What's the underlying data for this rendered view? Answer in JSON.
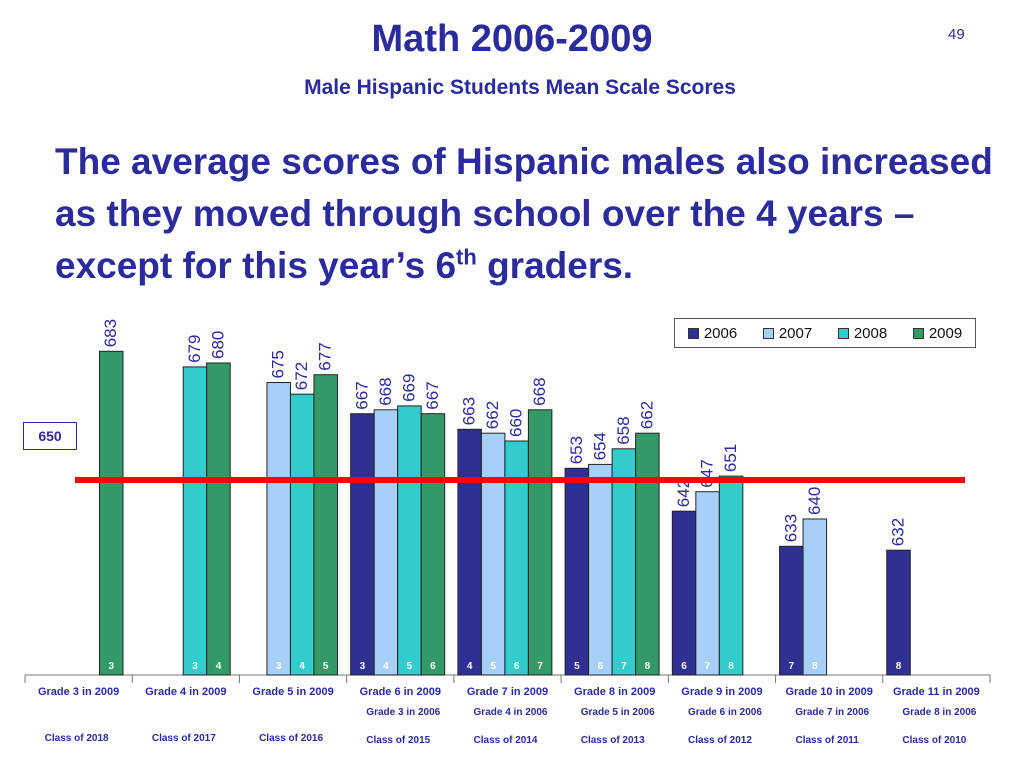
{
  "slide": {
    "title": "Math 2006-2009",
    "subtitle": "Male Hispanic Students Mean Scale Scores",
    "number": "49",
    "headline_main": "The average scores of Hispanic males also increased as they moved through school over the 4 years – except for this year’s 6",
    "headline_sup": "th",
    "headline_end": " graders."
  },
  "chart_data": {
    "type": "bar",
    "ylim": [
      600,
      690
    ],
    "grid": false,
    "legend_position": "top-right",
    "reference_line": {
      "value": 650,
      "label": "650",
      "color": "#ff0000"
    },
    "series_colors": {
      "2006": "#2e3192",
      "2007": "#a7d0f8",
      "2008": "#33cccc",
      "2009": "#339966"
    },
    "legend": [
      "2006",
      "2007",
      "2008",
      "2009"
    ],
    "groups": [
      {
        "label": "Grade 3 in 2009",
        "start_label": "",
        "class_label": "Class of 2018",
        "bars": [
          {
            "year": "2009",
            "value": 683,
            "grade": "3"
          }
        ]
      },
      {
        "label": "Grade 4 in 2009",
        "start_label": "",
        "class_label": "Class of 2017",
        "bars": [
          {
            "year": "2008",
            "value": 679,
            "grade": "3"
          },
          {
            "year": "2009",
            "value": 680,
            "grade": "4"
          }
        ]
      },
      {
        "label": "Grade 5 in 2009",
        "start_label": "",
        "class_label": "Class of 2016",
        "bars": [
          {
            "year": "2007",
            "value": 675,
            "grade": "3"
          },
          {
            "year": "2008",
            "value": 672,
            "grade": "4"
          },
          {
            "year": "2009",
            "value": 677,
            "grade": "5"
          }
        ]
      },
      {
        "label": "Grade 6 in 2009",
        "start_label": "Grade 3 in 2006",
        "class_label": "Class of 2015",
        "bars": [
          {
            "year": "2006",
            "value": 667,
            "grade": "3"
          },
          {
            "year": "2007",
            "value": 668,
            "grade": "4"
          },
          {
            "year": "2008",
            "value": 669,
            "grade": "5"
          },
          {
            "year": "2009",
            "value": 667,
            "grade": "6"
          }
        ]
      },
      {
        "label": "Grade 7 in 2009",
        "start_label": "Grade 4 in 2006",
        "class_label": "Class of 2014",
        "bars": [
          {
            "year": "2006",
            "value": 663,
            "grade": "4"
          },
          {
            "year": "2007",
            "value": 662,
            "grade": "5"
          },
          {
            "year": "2008",
            "value": 660,
            "grade": "6"
          },
          {
            "year": "2009",
            "value": 668,
            "grade": "7"
          }
        ]
      },
      {
        "label": "Grade 8 in 2009",
        "start_label": "Grade 5 in 2006",
        "class_label": "Class of 2013",
        "bars": [
          {
            "year": "2006",
            "value": 653,
            "grade": "5"
          },
          {
            "year": "2007",
            "value": 654,
            "grade": "6"
          },
          {
            "year": "2008",
            "value": 658,
            "grade": "7"
          },
          {
            "year": "2009",
            "value": 662,
            "grade": "8"
          }
        ]
      },
      {
        "label": "Grade 9 in 2009",
        "start_label": "Grade 6 in 2006",
        "class_label": "Class of 2012",
        "bars": [
          {
            "year": "2006",
            "value": 642,
            "grade": "6"
          },
          {
            "year": "2007",
            "value": 647,
            "grade": "7"
          },
          {
            "year": "2008",
            "value": 651,
            "grade": "8"
          }
        ]
      },
      {
        "label": "Grade 10 in 2009",
        "start_label": "Grade 7 in 2006",
        "class_label": "Class of 2011",
        "bars": [
          {
            "year": "2006",
            "value": 633,
            "grade": "7"
          },
          {
            "year": "2007",
            "value": 640,
            "grade": "8"
          }
        ]
      },
      {
        "label": "Grade 11 in 2009",
        "start_label": "Grade 8 in 2006",
        "class_label": "Class of 2010",
        "bars": [
          {
            "year": "2006",
            "value": 632,
            "grade": "8"
          }
        ]
      }
    ]
  }
}
